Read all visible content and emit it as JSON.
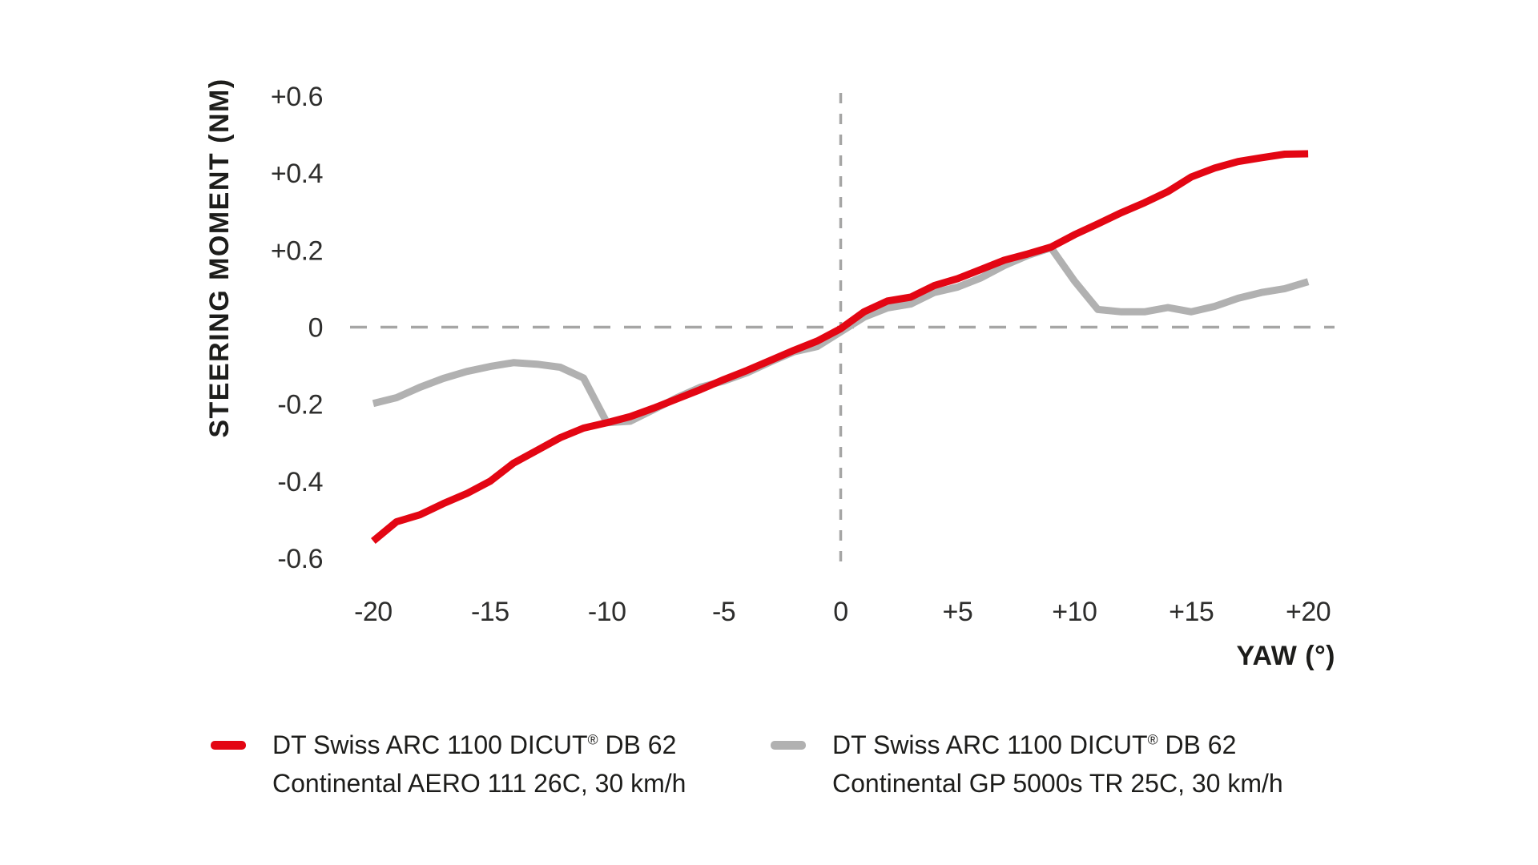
{
  "chart_data": {
    "type": "line",
    "title": "",
    "xlabel": "YAW (°)",
    "ylabel": "STEERING MOMENT (NM)",
    "xlim": [
      -20,
      20
    ],
    "ylim": [
      -0.6,
      0.6
    ],
    "grid": "off",
    "guides": {
      "horizontal_zero": true,
      "vertical_zero": true,
      "style": "dashed",
      "color": "#a6a6a5"
    },
    "x_ticks": [
      -20,
      -15,
      -10,
      -5,
      0,
      5,
      10,
      15,
      20
    ],
    "x_tick_labels": [
      "-20",
      "-15",
      "-10",
      "-5",
      "0",
      "+5",
      "+10",
      "+15",
      "+20"
    ],
    "y_ticks": [
      0.6,
      0.4,
      0.2,
      0,
      -0.2,
      -0.4,
      -0.6
    ],
    "y_tick_labels": [
      "+0.6",
      "+0.4",
      "+0.2",
      "0",
      "-0.2",
      "-0.4",
      "-0.6"
    ],
    "legend_position": "bottom",
    "x": [
      -20,
      -19,
      -18,
      -17,
      -16,
      -15,
      -14,
      -13,
      -12,
      -11,
      -10,
      -9,
      -8,
      -7,
      -6,
      -5,
      -4,
      -3,
      -2,
      -1,
      0,
      1,
      2,
      3,
      4,
      5,
      6,
      7,
      8,
      9,
      10,
      11,
      12,
      13,
      14,
      15,
      16,
      17,
      18,
      19,
      20
    ],
    "series": [
      {
        "name": "DT Swiss ARC 1100 DICUT® DB 62 Continental AERO 111 26C, 30 km/h",
        "color": "#e30613",
        "values": [
          -0.555,
          -0.505,
          -0.487,
          -0.458,
          -0.432,
          -0.4,
          -0.353,
          -0.32,
          -0.287,
          -0.262,
          -0.248,
          -0.232,
          -0.21,
          -0.186,
          -0.162,
          -0.136,
          -0.112,
          -0.086,
          -0.06,
          -0.036,
          -0.004,
          0.04,
          0.068,
          0.078,
          0.108,
          0.126,
          0.15,
          0.174,
          0.19,
          0.208,
          0.24,
          0.268,
          0.297,
          0.323,
          0.352,
          0.39,
          0.413,
          0.43,
          0.44,
          0.449,
          0.45
        ]
      },
      {
        "name": "DT Swiss ARC 1100 DICUT® DB 62 Continental GP 5000s TR 25C, 30 km/h",
        "color": "#b1b1b1",
        "values": [
          -0.198,
          -0.183,
          -0.156,
          -0.133,
          -0.115,
          -0.102,
          -0.092,
          -0.096,
          -0.104,
          -0.132,
          -0.248,
          -0.244,
          -0.214,
          -0.183,
          -0.156,
          -0.14,
          -0.118,
          -0.09,
          -0.064,
          -0.05,
          -0.012,
          0.026,
          0.05,
          0.06,
          0.09,
          0.104,
          0.128,
          0.16,
          0.186,
          0.206,
          0.12,
          0.046,
          0.04,
          0.04,
          0.051,
          0.04,
          0.054,
          0.075,
          0.09,
          0.1,
          0.118
        ]
      }
    ]
  },
  "legend": [
    {
      "color": "#e30613",
      "line1_pre": "DT Swiss ARC 1100 DICUT",
      "reg": "®",
      "line1_post": " DB 62",
      "line2": "Continental AERO 111 26C, 30 km/h"
    },
    {
      "color": "#b1b1b1",
      "line1_pre": "DT Swiss ARC 1100 DICUT",
      "reg": "®",
      "line1_post": " DB 62",
      "line2": "Continental GP 5000s TR 25C, 30 km/h"
    }
  ],
  "colors": {
    "text": "#1d1d1b",
    "tick_text": "#2e2e2d",
    "guide": "#a6a6a5",
    "background": "#ffffff"
  }
}
